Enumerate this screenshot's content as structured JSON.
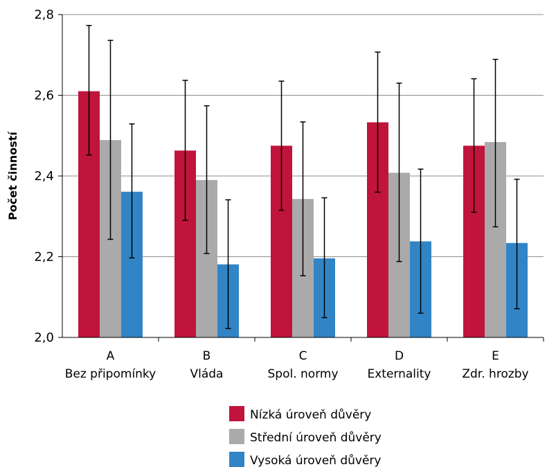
{
  "chart_data": {
    "type": "bar",
    "ylabel": "Počet činností",
    "ylim": [
      2.0,
      2.8
    ],
    "yticks": [
      "2,0",
      "2,2",
      "2,4",
      "2,6",
      "2,8"
    ],
    "ytick_values": [
      2.0,
      2.2,
      2.4,
      2.6,
      2.8
    ],
    "grid": true,
    "legend_position": "bottom",
    "categories": [
      {
        "letter": "A",
        "name": "Bez připomínky"
      },
      {
        "letter": "B",
        "name": "Vláda"
      },
      {
        "letter": "C",
        "name": "Spol. normy"
      },
      {
        "letter": "D",
        "name": "Externality"
      },
      {
        "letter": "E",
        "name": "Zdr. hrozby"
      }
    ],
    "series": [
      {
        "name": "Nízká úroveň důvěry",
        "color": "#c0143c",
        "values": [
          2.61,
          2.463,
          2.475,
          2.533,
          2.475
        ],
        "err_low": [
          2.452,
          2.29,
          2.315,
          2.36,
          2.31
        ],
        "err_high": [
          2.773,
          2.637,
          2.635,
          2.707,
          2.641
        ]
      },
      {
        "name": "Střední úroveň důvěry",
        "color": "#aaaaaa",
        "values": [
          2.489,
          2.39,
          2.343,
          2.408,
          2.484
        ],
        "err_low": [
          2.243,
          2.208,
          2.153,
          2.188,
          2.274
        ],
        "err_high": [
          2.736,
          2.574,
          2.534,
          2.63,
          2.689
        ]
      },
      {
        "name": "Vysoká úroveň důvěry",
        "color": "#3185c6",
        "values": [
          2.361,
          2.181,
          2.196,
          2.238,
          2.234
        ],
        "err_low": [
          2.197,
          2.022,
          2.049,
          2.06,
          2.071
        ],
        "err_high": [
          2.529,
          2.341,
          2.346,
          2.417,
          2.392
        ]
      }
    ]
  }
}
